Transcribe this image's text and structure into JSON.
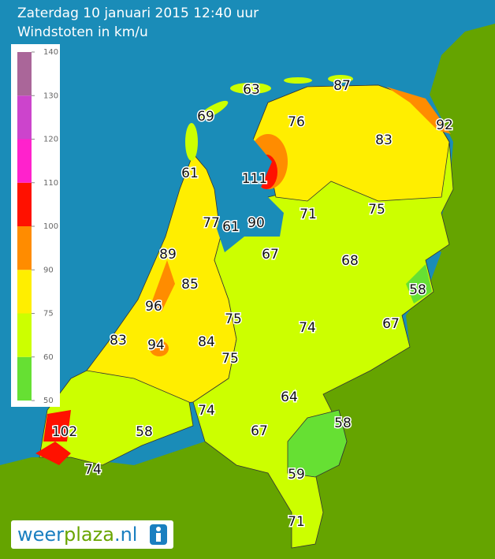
{
  "header": {
    "title": "Zaterdag 10 januari 2015 12:40 uur",
    "subtitle": "Windstoten in km/u"
  },
  "legend": {
    "ticks": [
      50,
      60,
      75,
      90,
      100,
      110,
      120,
      130,
      140
    ],
    "colors": [
      "#66e033",
      "#ccff00",
      "#ffee00",
      "#ff8c00",
      "#ff1100",
      "#ff22cc",
      "#cc44cc",
      "#aa6699"
    ]
  },
  "stations": [
    63,
    87,
    69,
    76,
    92,
    83,
    61,
    111,
    71,
    75,
    77,
    61,
    90,
    67,
    68,
    89,
    85,
    58,
    96,
    75,
    74,
    67,
    83,
    94,
    84,
    75,
    64,
    58,
    74,
    67,
    102,
    58,
    59,
    74,
    71
  ],
  "logo": {
    "part1": "weer",
    "part2": "plaza",
    "part3": ".nl"
  }
}
